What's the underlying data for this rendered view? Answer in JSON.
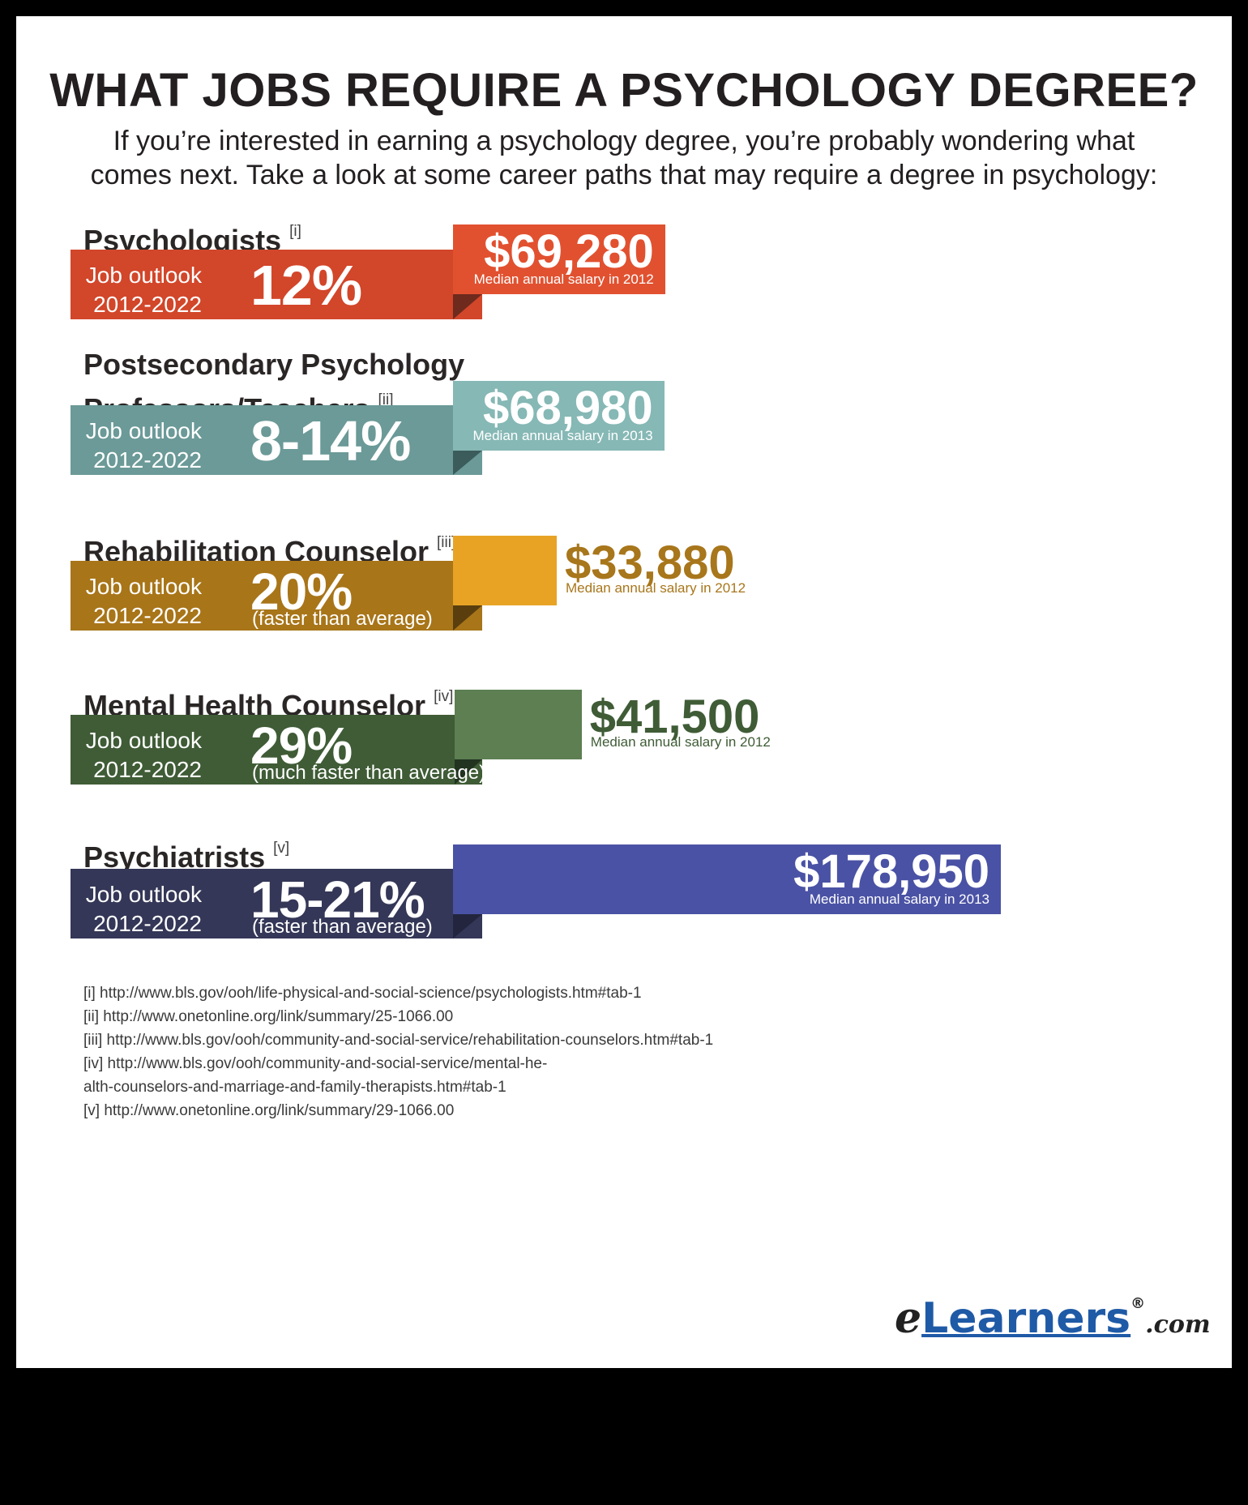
{
  "title": "WHAT JOBS REQUIRE A PSYCHOLOGY DEGREE?",
  "subtitle_line1": "If you’re interested in earning a psychology degree, you’re probably wondering what",
  "subtitle_line2": "comes next. Take a look at some career paths that may require a degree in psychology:",
  "chart_data": {
    "type": "bar",
    "categories": [
      "Psychologists",
      "Postsecondary Psychology Professors/Teachers",
      "Rehabilitation Counselor",
      "Mental Health Counselor",
      "Psychiatrists"
    ],
    "series": [
      {
        "name": "Median annual salary",
        "values": [
          69280,
          68980,
          33880,
          41500,
          178950
        ]
      }
    ],
    "outlook_label": "Job outlook",
    "outlook_period": "2012-2022",
    "careers": [
      {
        "title_line1": "Psychologists",
        "title_line2": "",
        "ref": "[i]",
        "outlook": "12%",
        "outlook_note": "",
        "salary": 69280,
        "salary_text": "$69,280",
        "salary_note": "Median annual salary in 2012",
        "colors": {
          "bar": "#d2462a",
          "box": "#e15130",
          "fold": "#6e2a1d",
          "salary_text": "#ffffff"
        }
      },
      {
        "title_line1": "Postsecondary Psychology",
        "title_line2": "Professors/Teachers",
        "ref": "[ii]",
        "outlook": "8-14%",
        "outlook_note": "",
        "salary": 68980,
        "salary_text": "$68,980",
        "salary_note": "Median annual salary in 2013",
        "colors": {
          "bar": "#6b9a98",
          "box": "#86b8b5",
          "fold": "#3b5c5b",
          "salary_text": "#ffffff"
        }
      },
      {
        "title_line1": "Rehabilitation Counselor",
        "title_line2": "",
        "ref": "[iii]",
        "outlook": "20%",
        "outlook_note": "(faster than average)",
        "salary": 33880,
        "salary_text": "$33,880",
        "salary_note": "Median annual salary in 2012",
        "colors": {
          "bar": "#a87519",
          "box": "#e8a325",
          "fold": "#5a3e0e",
          "salary_text": "#a8761b"
        }
      },
      {
        "title_line1": "Mental Health Counselor",
        "title_line2": "",
        "ref": "[iv]",
        "outlook": "29%",
        "outlook_note": "(much faster than average)",
        "salary": 41500,
        "salary_text": "$41,500",
        "salary_note": "Median annual salary in 2012",
        "colors": {
          "bar": "#3f5c36",
          "box": "#5d7f52",
          "fold": "#223320",
          "salary_text": "#3f5c36"
        }
      },
      {
        "title_line1": "Psychiatrists",
        "title_line2": "",
        "ref": "[v]",
        "outlook": "15-21%",
        "outlook_note": "(faster than average)",
        "salary": 178950,
        "salary_text": "$178,950",
        "salary_note": "Median annual salary in 2013",
        "colors": {
          "bar": "#343757",
          "box": "#4a52a5",
          "fold": "#22253d",
          "salary_text": "#ffffff"
        }
      }
    ]
  },
  "footnotes": [
    "[i] http://www.bls.gov/ooh/life-physical-and-social-science/psychologists.htm#tab-1",
    "[ii] http://www.onetonline.org/link/summary/25-1066.00",
    "[iii] http://www.bls.gov/ooh/community-and-social-service/rehabilitation-counselors.htm#tab-1",
    "[iv] http://www.bls.gov/ooh/community-and-social-service/mental-he-",
    "alth-counselors-and-marriage-and-family-therapists.htm#tab-1",
    "[v] http://www.onetonline.org/link/summary/29-1066.00"
  ],
  "logo": {
    "prefix": "e",
    "brand": "Learners",
    "reg": "®",
    "suffix": ".com"
  }
}
